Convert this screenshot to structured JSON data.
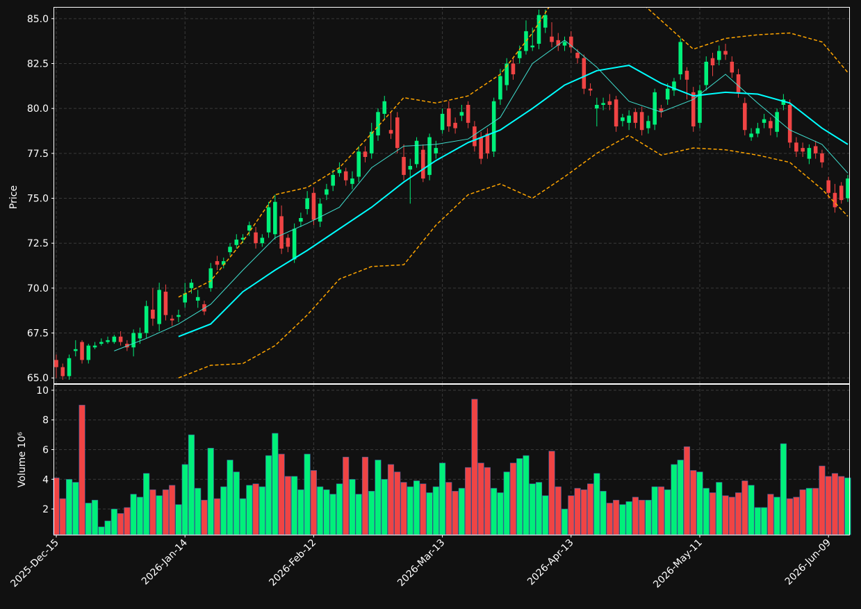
{
  "chart_data": {
    "type": "candlestick",
    "ylabel": "Price",
    "volume_label": "Volume  10⁶",
    "up_color": "#00f07a",
    "down_color": "#f04444",
    "grid": true,
    "categories": [
      "2025-Dec-15",
      null,
      null,
      null,
      null,
      null,
      null,
      null,
      null,
      null,
      null,
      null,
      null,
      null,
      null,
      null,
      null,
      null,
      null,
      null,
      "2026-Jan-14",
      null,
      null,
      null,
      null,
      null,
      null,
      null,
      null,
      null,
      null,
      null,
      null,
      null,
      null,
      null,
      null,
      null,
      null,
      null,
      "2026-Feb-12",
      null,
      null,
      null,
      null,
      null,
      null,
      null,
      null,
      null,
      null,
      null,
      null,
      null,
      null,
      null,
      null,
      null,
      null,
      null,
      "2026-Mar-13",
      null,
      null,
      null,
      null,
      null,
      null,
      null,
      null,
      null,
      null,
      null,
      null,
      null,
      null,
      null,
      null,
      null,
      null,
      null,
      "2026-Apr-13",
      null,
      null,
      null,
      null,
      null,
      null,
      null,
      null,
      null,
      null,
      null,
      null,
      null,
      null,
      null,
      null,
      null,
      null,
      null,
      "2026-May-11",
      null,
      null,
      null,
      null,
      null,
      null,
      null,
      null,
      null,
      null,
      null,
      null,
      null,
      null,
      null,
      null,
      null,
      null,
      null,
      "2026-Jun-09",
      null,
      null,
      null
    ],
    "open": [
      66.0,
      65.6,
      65.1,
      66.5,
      67.0,
      66.0,
      66.7,
      66.9,
      67.0,
      67.0,
      67.3,
      66.9,
      66.7,
      67.2,
      67.5,
      68.8,
      68.0,
      69.8,
      68.3,
      68.4,
      69.2,
      70.0,
      69.3,
      69.1,
      70.0,
      71.5,
      71.3,
      72.0,
      72.4,
      72.7,
      73.2,
      73.1,
      72.5,
      73.1,
      73.0,
      74.0,
      72.8,
      71.6,
      73.7,
      74.4,
      75.3,
      73.7,
      75.2,
      75.7,
      76.4,
      76.5,
      75.8,
      76.2,
      77.6,
      77.5,
      78.5,
      79.7,
      78.8,
      79.5,
      77.3,
      76.6,
      76.9,
      77.7,
      76.3,
      77.5,
      78.8,
      80.0,
      79.2,
      79.6,
      80.2,
      79.0,
      78.4,
      78.6,
      77.6,
      80.5,
      81.3,
      82.5,
      82.8,
      83.2,
      83.4,
      83.6,
      84.5,
      84.0,
      83.8,
      83.5,
      84.0,
      83.1,
      82.8,
      81.1,
      80.0,
      80.2,
      80.4,
      80.5,
      79.3,
      79.2,
      79.8,
      79.8,
      78.9,
      79.1,
      80.0,
      80.5,
      81.0,
      81.9,
      82.1,
      80.9,
      79.2,
      81.3,
      82.8,
      82.7,
      83.2,
      82.6,
      81.9,
      80.3,
      78.4,
      78.6,
      79.2,
      79.3,
      78.7,
      80.2,
      80.2,
      78.1,
      77.8,
      77.2,
      77.9,
      77.5,
      76.0,
      75.3,
      75.7,
      75.0
    ],
    "high": [
      66.3,
      65.8,
      66.3,
      67.1,
      67.1,
      66.9,
      67.0,
      67.2,
      67.3,
      67.4,
      67.6,
      67.1,
      67.7,
      67.8,
      69.3,
      70.0,
      70.3,
      70.2,
      68.5,
      68.8,
      70.3,
      70.5,
      69.9,
      69.3,
      71.4,
      71.8,
      71.7,
      72.5,
      73.0,
      73.0,
      73.7,
      73.4,
      73.0,
      74.8,
      75.2,
      74.6,
      73.0,
      73.6,
      74.2,
      75.4,
      75.6,
      75.0,
      75.8,
      76.6,
      77.0,
      76.7,
      76.5,
      77.9,
      77.9,
      79.2,
      80.0,
      80.7,
      79.8,
      79.8,
      78.0,
      77.2,
      78.4,
      78.0,
      78.6,
      78.2,
      80.0,
      80.4,
      79.5,
      80.2,
      80.4,
      79.3,
      78.7,
      78.9,
      80.6,
      82.2,
      82.8,
      82.8,
      83.5,
      84.9,
      84.5,
      85.5,
      85.5,
      84.8,
      84.2,
      84.0,
      84.3,
      83.3,
      83.0,
      81.4,
      80.6,
      80.6,
      80.8,
      80.7,
      79.7,
      79.9,
      80.0,
      80.1,
      79.6,
      81.1,
      80.2,
      81.4,
      81.7,
      83.9,
      82.3,
      81.2,
      81.3,
      82.9,
      83.1,
      83.5,
      83.6,
      82.9,
      82.2,
      80.6,
      78.9,
      79.2,
      79.7,
      79.5,
      80.0,
      80.8,
      80.5,
      78.4,
      78.1,
      78.0,
      78.2,
      77.7,
      76.2,
      75.8,
      75.9,
      76.3
    ],
    "low": [
      65.0,
      64.9,
      64.9,
      66.2,
      65.8,
      65.8,
      66.6,
      66.8,
      66.9,
      66.9,
      66.8,
      66.5,
      66.2,
      66.9,
      67.2,
      67.9,
      67.6,
      68.2,
      67.9,
      68.1,
      68.9,
      69.7,
      68.9,
      68.5,
      69.8,
      71.0,
      71.1,
      71.8,
      72.2,
      72.5,
      72.9,
      72.2,
      72.3,
      72.8,
      72.7,
      71.9,
      72.0,
      71.4,
      73.4,
      74.1,
      73.5,
      73.4,
      74.9,
      75.4,
      76.2,
      75.7,
      75.5,
      75.9,
      77.0,
      77.2,
      78.2,
      79.4,
      78.3,
      77.5,
      76.0,
      74.7,
      76.7,
      75.9,
      76.0,
      77.2,
      78.6,
      78.7,
      78.6,
      79.3,
      78.9,
      77.6,
      76.9,
      77.2,
      77.3,
      80.2,
      81.0,
      81.6,
      82.5,
      83.0,
      83.2,
      83.3,
      84.2,
      83.4,
      83.2,
      83.2,
      83.1,
      82.5,
      80.8,
      80.7,
      79.0,
      79.9,
      79.9,
      78.7,
      79.0,
      78.8,
      78.9,
      78.5,
      78.6,
      78.8,
      79.5,
      80.2,
      80.7,
      81.6,
      80.5,
      78.7,
      78.9,
      81.0,
      81.8,
      82.4,
      82.7,
      81.7,
      80.6,
      78.5,
      78.2,
      78.4,
      78.9,
      78.5,
      78.4,
      79.9,
      77.8,
      77.3,
      77.3,
      76.9,
      77.2,
      76.7,
      75.0,
      74.2,
      74.7,
      74.8
    ],
    "close": [
      65.6,
      65.1,
      66.1,
      66.6,
      66.0,
      66.8,
      66.8,
      67.0,
      67.1,
      67.3,
      67.0,
      66.7,
      67.5,
      67.5,
      69.0,
      68.3,
      69.9,
      68.5,
      68.2,
      68.5,
      69.7,
      70.3,
      69.5,
      68.7,
      71.1,
      71.3,
      71.5,
      72.3,
      72.7,
      72.8,
      73.5,
      72.5,
      72.8,
      74.5,
      74.8,
      72.2,
      72.3,
      73.3,
      73.9,
      75.0,
      73.8,
      74.7,
      75.5,
      76.3,
      76.6,
      76.0,
      76.1,
      77.6,
      77.3,
      78.7,
      79.8,
      80.4,
      78.6,
      77.8,
      76.3,
      76.8,
      78.2,
      76.1,
      78.4,
      77.8,
      79.7,
      79.0,
      78.9,
      79.8,
      79.2,
      77.9,
      77.2,
      77.5,
      80.4,
      81.8,
      82.5,
      81.9,
      83.2,
      84.3,
      83.5,
      85.2,
      85.2,
      83.7,
      83.5,
      83.7,
      83.4,
      82.8,
      81.1,
      81.0,
      80.2,
      80.3,
      80.2,
      79.0,
      79.5,
      79.6,
      79.2,
      78.8,
      79.3,
      80.9,
      79.8,
      81.1,
      81.5,
      83.7,
      81.6,
      79.0,
      81.0,
      82.6,
      82.4,
      83.2,
      83.0,
      82.0,
      80.9,
      78.8,
      78.6,
      78.9,
      79.4,
      78.9,
      79.8,
      80.5,
      78.1,
      77.6,
      77.6,
      77.8,
      77.5,
      77.0,
      75.3,
      74.5,
      74.9,
      76.1
    ],
    "volume": [
      4.1,
      2.7,
      4.0,
      3.8,
      9.0,
      2.4,
      2.6,
      0.8,
      1.2,
      2.0,
      1.7,
      2.1,
      3.0,
      2.8,
      4.4,
      3.3,
      2.9,
      3.3,
      3.6,
      2.3,
      5.0,
      7.0,
      3.4,
      2.6,
      6.1,
      2.7,
      3.5,
      5.3,
      4.5,
      2.7,
      3.6,
      3.7,
      3.5,
      5.6,
      7.1,
      5.7,
      4.2,
      4.2,
      3.3,
      5.7,
      4.6,
      3.5,
      3.3,
      3.0,
      3.7,
      5.5,
      4.0,
      3.0,
      5.5,
      3.2,
      5.3,
      4.0,
      5.0,
      4.5,
      3.8,
      3.5,
      3.9,
      3.7,
      3.1,
      3.5,
      5.1,
      3.8,
      3.2,
      3.4,
      4.8,
      9.4,
      5.1,
      4.8,
      3.4,
      3.1,
      4.5,
      5.1,
      5.4,
      5.6,
      3.7,
      3.8,
      2.9,
      5.9,
      3.5,
      2.0,
      2.9,
      3.4,
      3.3,
      3.7,
      4.4,
      3.2,
      2.4,
      2.6,
      2.3,
      2.5,
      2.8,
      2.6,
      2.6,
      3.5,
      3.5,
      3.3,
      5.0,
      5.3,
      6.2,
      4.6,
      4.5,
      3.4,
      3.1,
      3.8,
      2.9,
      2.8,
      3.1,
      3.9,
      3.6,
      2.1,
      2.1,
      3.0,
      2.8,
      6.4,
      2.7,
      2.8,
      3.3,
      3.4,
      3.4,
      4.9,
      4.2,
      4.4,
      4.2,
      4.1
    ],
    "ylim": [
      64.7,
      85.65
    ],
    "yticks": [
      {
        "value": 65,
        "label": "65.0"
      },
      67.5,
      {
        "value": 70,
        "label": "70.0"
      },
      72.5,
      {
        "value": 75,
        "label": "75.0"
      },
      77.5,
      {
        "value": 80,
        "label": "80.0"
      },
      82.5,
      {
        "value": 85,
        "label": "85.0"
      }
    ],
    "volume_ylim": [
      0.27,
      10.42
    ],
    "volume_yticks": [
      2,
      4,
      6,
      8,
      10
    ],
    "overlays": [
      {
        "color": "#40e0d0",
        "width": 1,
        "dash": false,
        "x": [
          9,
          14,
          19,
          24,
          29,
          34,
          39,
          44,
          49,
          54,
          59,
          64,
          69,
          74,
          79,
          84,
          89,
          94,
          99,
          104,
          109,
          114,
          119,
          123
        ],
        "values": [
          66.5,
          67.2,
          68.0,
          69.1,
          71.0,
          72.8,
          73.6,
          74.5,
          76.7,
          77.9,
          78.0,
          78.3,
          79.5,
          82.5,
          83.8,
          82.3,
          80.4,
          79.8,
          80.5,
          81.9,
          80.3,
          78.8,
          78.0,
          76.4
        ]
      },
      {
        "color": "#00ffff",
        "width": 2,
        "dash": false,
        "x": [
          19,
          24,
          29,
          34,
          39,
          44,
          49,
          54,
          59,
          64,
          69,
          74,
          79,
          84,
          89,
          94,
          99,
          104,
          109,
          114,
          119,
          123
        ],
        "values": [
          67.3,
          68.0,
          69.8,
          71.0,
          72.1,
          73.3,
          74.5,
          75.9,
          77.1,
          78.1,
          78.8,
          80.0,
          81.3,
          82.1,
          82.4,
          81.4,
          80.7,
          80.9,
          80.8,
          80.3,
          78.9,
          78.0
        ]
      },
      {
        "color": "#ffa500",
        "width": 1.5,
        "dash": true,
        "x": [
          19,
          24,
          29,
          34,
          39,
          44,
          49,
          54,
          59,
          64,
          69,
          74,
          79,
          84,
          89,
          94,
          99,
          104,
          109,
          114,
          119,
          123
        ],
        "values": [
          69.5,
          70.4,
          72.6,
          75.2,
          75.6,
          76.7,
          78.6,
          80.6,
          80.3,
          80.7,
          81.9,
          84.2,
          87.0,
          87.5,
          86.5,
          84.9,
          83.3,
          83.9,
          84.1,
          84.2,
          83.7,
          82.0
        ]
      },
      {
        "color": "#ffa500",
        "width": 1.5,
        "dash": true,
        "x": [
          19,
          24,
          29,
          34,
          39,
          44,
          49,
          54,
          59,
          64,
          69,
          74,
          79,
          84,
          89,
          94,
          99,
          104,
          109,
          114,
          119,
          123
        ],
        "values": [
          65.0,
          65.7,
          65.8,
          66.8,
          68.5,
          70.5,
          71.2,
          71.3,
          73.5,
          75.2,
          75.8,
          75.0,
          76.2,
          77.5,
          78.5,
          77.4,
          77.8,
          77.7,
          77.4,
          77.0,
          75.5,
          74.0
        ]
      }
    ]
  }
}
